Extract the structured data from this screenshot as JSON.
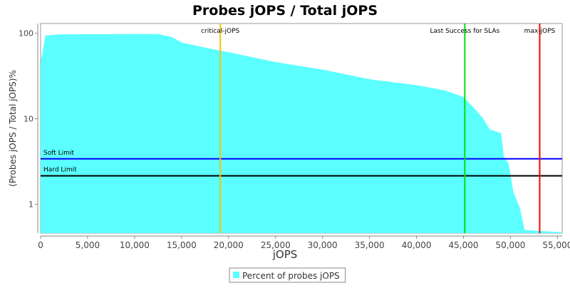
{
  "chart_data": {
    "type": "area",
    "title": "Probes jOPS / Total jOPS",
    "xlabel": "jOPS",
    "ylabel": "(Probes jOPS / Total jOPS)%",
    "log_y": true,
    "xlim": [
      0,
      55500
    ],
    "ylim": [
      0.46,
      130
    ],
    "xticks": [
      0,
      {
        "value": 5000,
        "label": "5,000"
      },
      {
        "value": 10000,
        "label": "10,000"
      },
      {
        "value": 15000,
        "label": "15,000"
      },
      {
        "value": 20000,
        "label": "20,000"
      },
      {
        "value": 25000,
        "label": "25,000"
      },
      {
        "value": 30000,
        "label": "30,000"
      },
      {
        "value": 35000,
        "label": "35,000"
      },
      {
        "value": 40000,
        "label": "40,000"
      },
      {
        "value": 45000,
        "label": "45,000"
      },
      {
        "value": 50000,
        "label": "50,000"
      },
      {
        "value": 55000,
        "label": "55,000"
      }
    ],
    "yticks": [
      1,
      10,
      100
    ],
    "series": [
      {
        "name": "Percent of probes jOPS",
        "color": "#5bffff",
        "x": [
          0,
          500,
          2000,
          5000,
          10000,
          12500,
          14000,
          15000,
          17500,
          19000,
          20000,
          25000,
          30000,
          35000,
          40000,
          43000,
          45000,
          46000,
          47000,
          47800,
          49000,
          49300,
          49800,
          50300,
          51000,
          51500,
          55500
        ],
        "values": [
          44,
          94,
          97,
          97.5,
          98,
          98,
          90,
          78,
          68,
          63,
          60,
          46,
          37.6,
          29,
          24.7,
          21.5,
          18,
          13.8,
          10.4,
          7.5,
          6.8,
          3.6,
          3,
          1.4,
          0.91,
          0.5,
          0.47
        ]
      }
    ],
    "vertical_markers": [
      {
        "label": "critical-jOPS",
        "value": 19120,
        "color": "#ffc000"
      },
      {
        "label": "Last Success for SLAs",
        "value": 45140,
        "color": "#00e000"
      },
      {
        "label": "max-jOPS",
        "value": 53110,
        "color": "#ff0000"
      }
    ],
    "horizontal_markers": [
      {
        "label": "Soft Limit",
        "value": 3.4,
        "color": "#0000ff"
      },
      {
        "label": "Hard Limit",
        "value": 2.15,
        "color": "#000000"
      }
    ],
    "legend": "bottom"
  }
}
